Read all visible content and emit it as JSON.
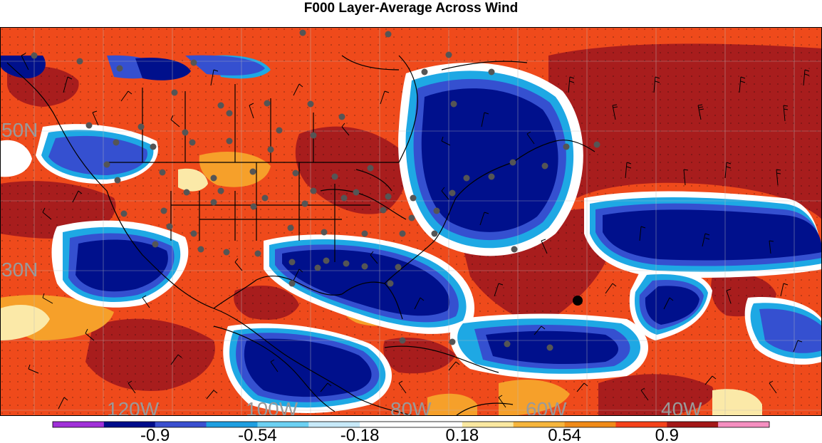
{
  "title": "F000 Layer-Average Across Wind",
  "map": {
    "longitude_labels": [
      "120W",
      "100W",
      "80W",
      "60W",
      "40W"
    ],
    "latitude_labels": [
      "50N",
      "30N"
    ],
    "label_color": "#9a9a9a"
  },
  "colorbar": {
    "labels": [
      "-0.9",
      "-0.54",
      "-0.18",
      "0.18",
      "0.54",
      "0.9"
    ],
    "colors": [
      "#a030d8",
      "#000c8a",
      "#3a4fcf",
      "#1e9ee0",
      "#6cd0f2",
      "#c7e9f8",
      "#ffffff",
      "#ffffff",
      "#fae8a0",
      "#f6b53c",
      "#f08a18",
      "#f5421a",
      "#a31818",
      "#f58fc0"
    ]
  },
  "palette": {
    "dark_blue": "#00108c",
    "blue": "#3550d0",
    "light_blue": "#1ea8e4",
    "pale_blue": "#bfe6f7",
    "white": "#ffffff",
    "pale_yellow": "#fbe9a8",
    "orange": "#f6a02a",
    "red_orange": "#ef4a1b",
    "dark_red": "#a81d1d",
    "station": "#555555"
  }
}
